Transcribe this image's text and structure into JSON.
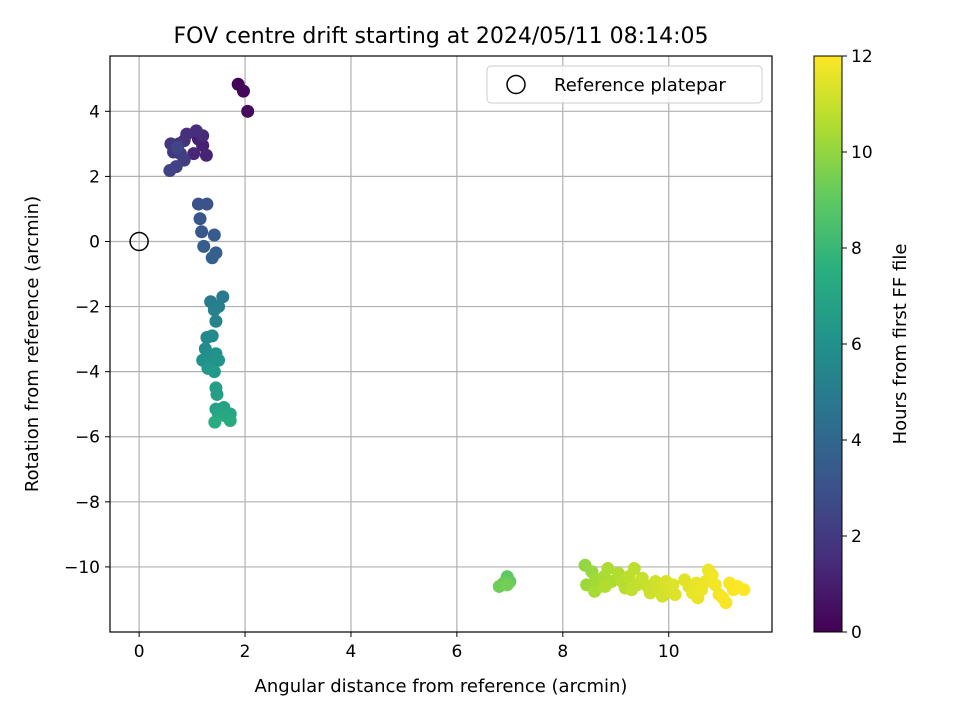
{
  "chart_data": {
    "type": "scatter",
    "title": "FOV centre drift starting at 2024/05/11 08:14:05",
    "xlabel": "Angular distance from reference (arcmin)",
    "ylabel": "Rotation from reference (arcmin)",
    "xlim": [
      -0.55,
      11.95
    ],
    "ylim": [
      -12.0,
      5.7
    ],
    "xticks": [
      0,
      2,
      4,
      6,
      8,
      10
    ],
    "yticks": [
      4,
      2,
      0,
      -2,
      -4,
      -6,
      -8,
      -10
    ],
    "xtick_labels": [
      "0",
      "2",
      "4",
      "6",
      "8",
      "10"
    ],
    "ytick_labels": [
      "4",
      "2",
      "0",
      "−2",
      "−4",
      "−6",
      "−8",
      "−10"
    ],
    "grid": true,
    "legend": {
      "position": "top-right",
      "entries": [
        {
          "label": "Reference platepar",
          "marker": "open-circle"
        }
      ]
    },
    "colorbar": {
      "label": "Hours from first FF file",
      "range": [
        0,
        12
      ],
      "ticks": [
        0,
        2,
        4,
        6,
        8,
        10,
        12
      ],
      "tick_labels": [
        "0",
        "2",
        "4",
        "6",
        "8",
        "10",
        "12"
      ],
      "colormap": "viridis"
    },
    "reference_point": {
      "x": 0,
      "y": 0
    },
    "points": [
      {
        "x": 1.87,
        "y": 4.83,
        "t": 0.1
      },
      {
        "x": 1.97,
        "y": 4.62,
        "t": 0.2
      },
      {
        "x": 2.05,
        "y": 4.0,
        "t": 0.3
      },
      {
        "x": 1.12,
        "y": 3.15,
        "t": 1.0
      },
      {
        "x": 1.2,
        "y": 2.95,
        "t": 1.1
      },
      {
        "x": 1.27,
        "y": 2.65,
        "t": 1.2
      },
      {
        "x": 1.03,
        "y": 2.7,
        "t": 1.3
      },
      {
        "x": 1.2,
        "y": 3.25,
        "t": 1.4
      },
      {
        "x": 1.08,
        "y": 3.4,
        "t": 1.5
      },
      {
        "x": 0.9,
        "y": 3.3,
        "t": 1.6
      },
      {
        "x": 0.85,
        "y": 3.1,
        "t": 1.7
      },
      {
        "x": 0.75,
        "y": 3.0,
        "t": 1.8
      },
      {
        "x": 0.6,
        "y": 3.0,
        "t": 1.9
      },
      {
        "x": 0.65,
        "y": 2.75,
        "t": 2.0
      },
      {
        "x": 0.78,
        "y": 2.7,
        "t": 2.1
      },
      {
        "x": 0.85,
        "y": 2.5,
        "t": 2.2
      },
      {
        "x": 0.7,
        "y": 2.3,
        "t": 2.3
      },
      {
        "x": 0.58,
        "y": 2.18,
        "t": 2.4
      },
      {
        "x": 0.72,
        "y": 2.9,
        "t": 2.5
      },
      {
        "x": 1.12,
        "y": 1.15,
        "t": 3.0
      },
      {
        "x": 1.28,
        "y": 1.15,
        "t": 3.1
      },
      {
        "x": 1.15,
        "y": 0.7,
        "t": 3.2
      },
      {
        "x": 1.18,
        "y": 0.3,
        "t": 3.3
      },
      {
        "x": 1.42,
        "y": 0.2,
        "t": 3.4
      },
      {
        "x": 1.22,
        "y": -0.15,
        "t": 3.5
      },
      {
        "x": 1.45,
        "y": -0.35,
        "t": 3.6
      },
      {
        "x": 1.38,
        "y": -0.5,
        "t": 3.7
      },
      {
        "x": 1.58,
        "y": -1.7,
        "t": 4.9
      },
      {
        "x": 1.35,
        "y": -1.85,
        "t": 5.0
      },
      {
        "x": 1.5,
        "y": -2.0,
        "t": 5.1
      },
      {
        "x": 1.42,
        "y": -2.1,
        "t": 5.2
      },
      {
        "x": 1.45,
        "y": -2.45,
        "t": 5.3
      },
      {
        "x": 1.28,
        "y": -2.95,
        "t": 5.6
      },
      {
        "x": 1.38,
        "y": -2.9,
        "t": 5.7
      },
      {
        "x": 1.25,
        "y": -3.3,
        "t": 5.8
      },
      {
        "x": 1.32,
        "y": -3.5,
        "t": 5.9
      },
      {
        "x": 1.45,
        "y": -3.45,
        "t": 6.0
      },
      {
        "x": 1.2,
        "y": -3.65,
        "t": 6.0
      },
      {
        "x": 1.35,
        "y": -3.7,
        "t": 6.1
      },
      {
        "x": 1.5,
        "y": -3.65,
        "t": 6.2
      },
      {
        "x": 1.3,
        "y": -3.9,
        "t": 6.3
      },
      {
        "x": 1.42,
        "y": -4.0,
        "t": 6.4
      },
      {
        "x": 1.45,
        "y": -4.5,
        "t": 6.6
      },
      {
        "x": 1.47,
        "y": -4.7,
        "t": 6.7
      },
      {
        "x": 1.45,
        "y": -5.15,
        "t": 6.8
      },
      {
        "x": 1.6,
        "y": -5.1,
        "t": 6.9
      },
      {
        "x": 1.72,
        "y": -5.3,
        "t": 7.0
      },
      {
        "x": 1.5,
        "y": -5.3,
        "t": 7.1
      },
      {
        "x": 1.62,
        "y": -5.35,
        "t": 7.2
      },
      {
        "x": 1.72,
        "y": -5.5,
        "t": 7.3
      },
      {
        "x": 1.43,
        "y": -5.55,
        "t": 7.4
      },
      {
        "x": 6.95,
        "y": -10.3,
        "t": 9.0
      },
      {
        "x": 7.0,
        "y": -10.45,
        "t": 9.1
      },
      {
        "x": 6.88,
        "y": -10.5,
        "t": 9.2
      },
      {
        "x": 6.8,
        "y": -10.6,
        "t": 9.3
      },
      {
        "x": 6.95,
        "y": -10.55,
        "t": 9.4
      },
      {
        "x": 8.42,
        "y": -9.95,
        "t": 10.0
      },
      {
        "x": 8.55,
        "y": -10.15,
        "t": 10.1
      },
      {
        "x": 8.45,
        "y": -10.55,
        "t": 10.2
      },
      {
        "x": 8.62,
        "y": -10.4,
        "t": 10.3
      },
      {
        "x": 8.7,
        "y": -10.6,
        "t": 10.3
      },
      {
        "x": 8.6,
        "y": -10.75,
        "t": 10.4
      },
      {
        "x": 8.78,
        "y": -10.3,
        "t": 10.4
      },
      {
        "x": 8.85,
        "y": -10.05,
        "t": 10.5
      },
      {
        "x": 8.92,
        "y": -10.45,
        "t": 10.5
      },
      {
        "x": 8.8,
        "y": -10.6,
        "t": 10.6
      },
      {
        "x": 9.05,
        "y": -10.2,
        "t": 10.6
      },
      {
        "x": 9.12,
        "y": -10.45,
        "t": 10.7
      },
      {
        "x": 9.18,
        "y": -10.65,
        "t": 10.7
      },
      {
        "x": 9.25,
        "y": -10.3,
        "t": 10.8
      },
      {
        "x": 9.35,
        "y": -10.05,
        "t": 10.8
      },
      {
        "x": 9.4,
        "y": -10.55,
        "t": 10.9
      },
      {
        "x": 9.3,
        "y": -10.7,
        "t": 10.9
      },
      {
        "x": 9.5,
        "y": -10.35,
        "t": 11.0
      },
      {
        "x": 9.6,
        "y": -10.6,
        "t": 11.0
      },
      {
        "x": 9.65,
        "y": -10.8,
        "t": 11.1
      },
      {
        "x": 9.75,
        "y": -10.45,
        "t": 11.1
      },
      {
        "x": 9.82,
        "y": -10.65,
        "t": 11.2
      },
      {
        "x": 9.88,
        "y": -10.9,
        "t": 11.2
      },
      {
        "x": 9.95,
        "y": -10.45,
        "t": 11.3
      },
      {
        "x": 10.02,
        "y": -10.75,
        "t": 11.3
      },
      {
        "x": 10.08,
        "y": -10.55,
        "t": 11.4
      },
      {
        "x": 10.12,
        "y": -10.85,
        "t": 11.4
      },
      {
        "x": 10.3,
        "y": -10.4,
        "t": 11.5
      },
      {
        "x": 10.38,
        "y": -10.6,
        "t": 11.5
      },
      {
        "x": 10.45,
        "y": -10.8,
        "t": 11.6
      },
      {
        "x": 10.52,
        "y": -10.5,
        "t": 11.6
      },
      {
        "x": 10.55,
        "y": -10.95,
        "t": 11.6
      },
      {
        "x": 10.62,
        "y": -10.7,
        "t": 11.7
      },
      {
        "x": 10.7,
        "y": -10.45,
        "t": 11.7
      },
      {
        "x": 10.75,
        "y": -10.1,
        "t": 11.7
      },
      {
        "x": 10.82,
        "y": -10.25,
        "t": 11.8
      },
      {
        "x": 10.88,
        "y": -10.55,
        "t": 11.8
      },
      {
        "x": 10.95,
        "y": -10.85,
        "t": 11.8
      },
      {
        "x": 11.02,
        "y": -10.95,
        "t": 11.9
      },
      {
        "x": 11.08,
        "y": -11.1,
        "t": 11.9
      },
      {
        "x": 11.15,
        "y": -10.5,
        "t": 11.9
      },
      {
        "x": 11.22,
        "y": -10.7,
        "t": 11.9
      },
      {
        "x": 11.3,
        "y": -10.6,
        "t": 12.0
      },
      {
        "x": 11.42,
        "y": -10.7,
        "t": 12.0
      }
    ]
  }
}
